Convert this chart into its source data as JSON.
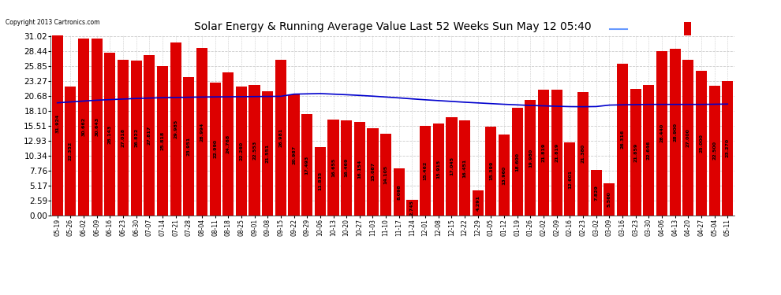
{
  "title": "Solar Energy & Running Average Value Last 52 Weeks Sun May 12 05:40",
  "copyright": "Copyright 2013 Cartronics.com",
  "bar_color": "#dd0000",
  "avg_line_color": "#0000cd",
  "background_color": "#ffffff",
  "grid_color": "#cccccc",
  "ytick_labels": [
    "0.00",
    "2.59",
    "5.17",
    "7.76",
    "10.34",
    "12.93",
    "15.51",
    "18.10",
    "20.68",
    "23.27",
    "25.85",
    "28.44",
    "31.02"
  ],
  "ytick_values": [
    0.0,
    2.59,
    5.17,
    7.76,
    10.34,
    12.93,
    15.51,
    18.1,
    20.68,
    23.27,
    25.85,
    28.44,
    31.02
  ],
  "categories": [
    "05-19",
    "05-26",
    "06-02",
    "06-09",
    "06-16",
    "06-23",
    "06-30",
    "07-07",
    "07-14",
    "07-21",
    "07-28",
    "08-04",
    "08-11",
    "08-18",
    "08-25",
    "09-01",
    "09-08",
    "09-15",
    "09-22",
    "09-29",
    "10-06",
    "10-13",
    "10-20",
    "10-27",
    "11-03",
    "11-10",
    "11-17",
    "11-24",
    "12-01",
    "12-08",
    "12-15",
    "12-22",
    "12-29",
    "01-05",
    "01-12",
    "01-19",
    "01-26",
    "02-02",
    "02-09",
    "02-16",
    "02-23",
    "03-02",
    "03-09",
    "03-16",
    "03-23",
    "03-30",
    "04-06",
    "04-13",
    "04-20",
    "04-27",
    "05-04",
    "05-11"
  ],
  "bar_values": [
    31.924,
    22.352,
    30.662,
    30.643,
    28.143,
    27.018,
    26.822,
    27.817,
    25.818,
    29.985,
    23.951,
    28.994,
    22.99,
    24.768,
    22.26,
    22.553,
    21.551,
    26.981,
    20.987,
    17.493,
    11.835,
    16.655,
    16.469,
    16.154,
    15.087,
    14.105,
    8.098,
    2.745,
    15.462,
    15.915,
    17.045,
    16.451,
    4.291,
    15.399,
    13.96,
    18.6,
    19.98,
    21.819,
    21.819,
    12.601,
    21.38,
    7.829,
    5.56,
    26.316,
    21.859,
    22.646,
    28.44,
    28.9,
    27.0,
    25.0,
    22.5,
    23.27
  ],
  "avg_values": [
    19.5,
    19.65,
    19.8,
    19.95,
    20.05,
    20.15,
    20.25,
    20.32,
    20.38,
    20.42,
    20.46,
    20.5,
    20.52,
    20.54,
    20.56,
    20.58,
    20.6,
    20.62,
    21.0,
    21.05,
    21.1,
    21.0,
    20.9,
    20.78,
    20.65,
    20.5,
    20.35,
    20.18,
    20.02,
    19.88,
    19.74,
    19.6,
    19.48,
    19.36,
    19.24,
    19.14,
    19.04,
    18.97,
    18.9,
    18.84,
    18.82,
    18.85,
    19.1,
    19.15,
    19.18,
    19.22,
    19.22,
    19.22,
    19.22,
    19.22,
    19.25,
    19.28
  ],
  "ylim_max": 31.02,
  "legend_bg_color": "#000080",
  "label_fontsize": 4.5,
  "title_fontsize": 10,
  "ytick_fontsize": 7.5,
  "xtick_fontsize": 5.5
}
